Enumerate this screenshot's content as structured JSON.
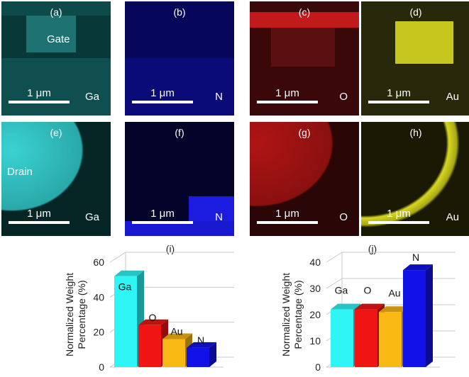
{
  "panels": [
    {
      "label": "(a)",
      "scale": "1 μm",
      "element": "Ga",
      "region": "Gate",
      "color": "#2fbfbf"
    },
    {
      "label": "(b)",
      "scale": "1 μm",
      "element": "N",
      "region": "",
      "color": "#1010c8"
    },
    {
      "label": "(c)",
      "scale": "1 μm",
      "element": "O",
      "region": "",
      "color": "#d01818"
    },
    {
      "label": "(d)",
      "scale": "1 μm",
      "element": "Au",
      "region": "",
      "color": "#c8c818"
    },
    {
      "label": "(e)",
      "scale": "1 μm",
      "element": "Ga",
      "region": "Drain",
      "color": "#2fbfbf"
    },
    {
      "label": "(f)",
      "scale": "1 μm",
      "element": "N",
      "region": "",
      "color": "#1010c8"
    },
    {
      "label": "(g)",
      "scale": "1 μm",
      "element": "O",
      "region": "",
      "color": "#d01818"
    },
    {
      "label": "(h)",
      "scale": "1 μm",
      "element": "Au",
      "region": "",
      "color": "#c8c818"
    }
  ],
  "chart_data": [
    {
      "type": "bar",
      "title": "(i)",
      "ylabel": "Normalized Weight Percentage (%)",
      "categories": [
        "Ga",
        "O",
        "Au",
        "N"
      ],
      "values": [
        52,
        24,
        16,
        11
      ],
      "yticks": [
        "0",
        "20",
        "40",
        "60"
      ],
      "ylim": [
        0,
        60
      ],
      "grid": true,
      "colors": [
        "#2ff5f5",
        "#f01414",
        "#fab814",
        "#1212e8"
      ]
    },
    {
      "type": "bar",
      "title": "(j)",
      "ylabel": "Normalized Weight Percentage (%)",
      "categories": [
        "Ga",
        "O",
        "Au",
        "N"
      ],
      "values": [
        22,
        22,
        21,
        37
      ],
      "yticks": [
        "0",
        "10",
        "20",
        "30",
        "40"
      ],
      "ylim": [
        0,
        40
      ],
      "grid": true,
      "colors": [
        "#2ff5f5",
        "#f01414",
        "#fab814",
        "#1212e8"
      ]
    }
  ]
}
